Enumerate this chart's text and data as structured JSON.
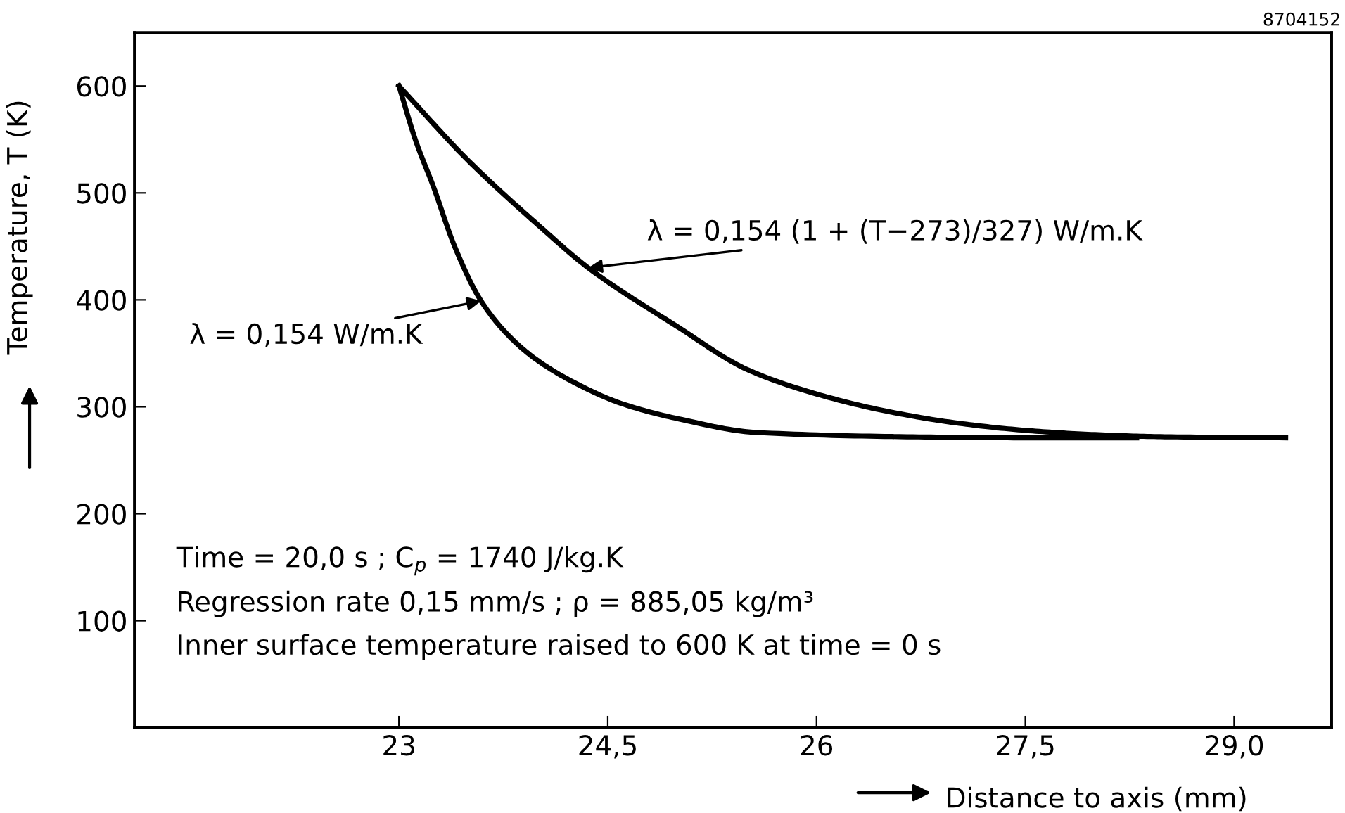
{
  "chart_data": {
    "type": "line",
    "xlabel": "Distance to axis (mm)",
    "ylabel": "Temperature, T (K)",
    "xlim": [
      21.1,
      29.7
    ],
    "ylim": [
      0,
      650
    ],
    "xticks": [
      23,
      {
        "value": 24.5,
        "label": "24,5"
      },
      26,
      {
        "value": 27.5,
        "label": "27,5"
      },
      {
        "value": 29.0,
        "label": "29,0"
      }
    ],
    "yticks": [
      100,
      200,
      300,
      400,
      500,
      600
    ],
    "grid": false,
    "legend": false,
    "marker": "none",
    "line_style": "solid",
    "series": [
      {
        "color": "#000000",
        "x": [
          23,
          23.5,
          24,
          24.36,
          25,
          25.5,
          26,
          26.5,
          27,
          27.5,
          28,
          28.5,
          29.37
        ],
        "values": [
          600,
          530,
          470,
          430,
          375,
          335,
          312,
          296,
          285,
          278,
          274,
          272,
          271
        ]
      },
      {
        "color": "#000000",
        "x": [
          23,
          23.12,
          23.25,
          23.4,
          23.59,
          23.8,
          24,
          24.3,
          24.6,
          25,
          25.57,
          26.65,
          27.5,
          28.3
        ],
        "values": [
          600,
          549,
          505,
          450,
          399,
          365,
          343,
          320,
          303,
          289,
          276,
          272,
          271,
          271
        ]
      }
    ],
    "annotations": [
      {
        "text": "λ = 0,154 (1 + (T−273)/327) W/m.K",
        "x": 24.36,
        "y": 430
      },
      {
        "text": "λ = 0,154 W/m.K",
        "x": 23.59,
        "y": 399
      },
      "Time = 20,0 s ; C$_{p}$ = 1740 J/kg.K",
      "Regression rate 0,15 mm/s ; ρ = 885,05 kg/m³",
      "Inner surface temperature raised to 600 K at time = 0 s",
      "8704152"
    ]
  }
}
